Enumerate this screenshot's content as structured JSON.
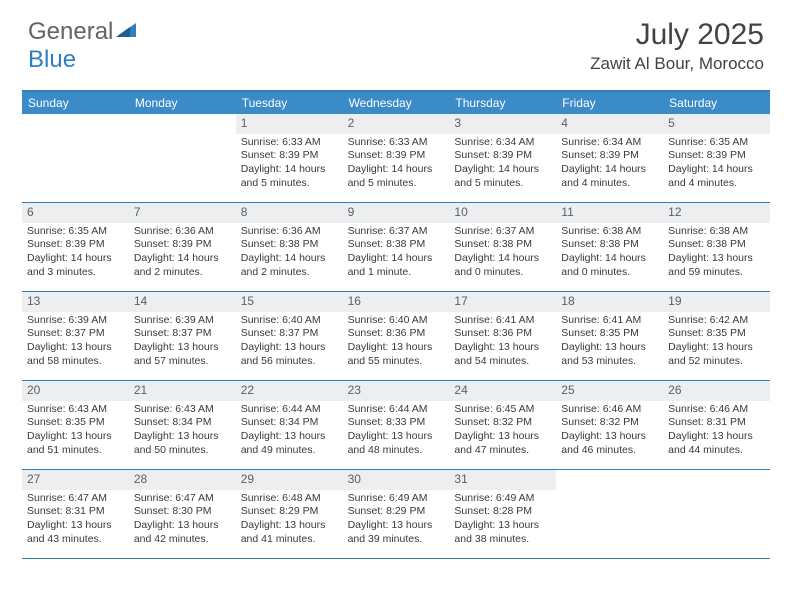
{
  "logo": {
    "text_left": "General",
    "text_right": "Blue"
  },
  "title": "July 2025",
  "location": "Zawit Al Bour, Morocco",
  "colors": {
    "header_bar": "#3b8bc8",
    "border": "#2f7fbf",
    "daynum_bg": "#eceeef",
    "text": "#3a3a3a",
    "title_text": "#404448"
  },
  "weekdays": [
    "Sunday",
    "Monday",
    "Tuesday",
    "Wednesday",
    "Thursday",
    "Friday",
    "Saturday"
  ],
  "weeks": [
    [
      {
        "day": "",
        "sunrise": "",
        "sunset": "",
        "daylight": ""
      },
      {
        "day": "",
        "sunrise": "",
        "sunset": "",
        "daylight": ""
      },
      {
        "day": "1",
        "sunrise": "Sunrise: 6:33 AM",
        "sunset": "Sunset: 8:39 PM",
        "daylight": "Daylight: 14 hours and 5 minutes."
      },
      {
        "day": "2",
        "sunrise": "Sunrise: 6:33 AM",
        "sunset": "Sunset: 8:39 PM",
        "daylight": "Daylight: 14 hours and 5 minutes."
      },
      {
        "day": "3",
        "sunrise": "Sunrise: 6:34 AM",
        "sunset": "Sunset: 8:39 PM",
        "daylight": "Daylight: 14 hours and 5 minutes."
      },
      {
        "day": "4",
        "sunrise": "Sunrise: 6:34 AM",
        "sunset": "Sunset: 8:39 PM",
        "daylight": "Daylight: 14 hours and 4 minutes."
      },
      {
        "day": "5",
        "sunrise": "Sunrise: 6:35 AM",
        "sunset": "Sunset: 8:39 PM",
        "daylight": "Daylight: 14 hours and 4 minutes."
      }
    ],
    [
      {
        "day": "6",
        "sunrise": "Sunrise: 6:35 AM",
        "sunset": "Sunset: 8:39 PM",
        "daylight": "Daylight: 14 hours and 3 minutes."
      },
      {
        "day": "7",
        "sunrise": "Sunrise: 6:36 AM",
        "sunset": "Sunset: 8:39 PM",
        "daylight": "Daylight: 14 hours and 2 minutes."
      },
      {
        "day": "8",
        "sunrise": "Sunrise: 6:36 AM",
        "sunset": "Sunset: 8:38 PM",
        "daylight": "Daylight: 14 hours and 2 minutes."
      },
      {
        "day": "9",
        "sunrise": "Sunrise: 6:37 AM",
        "sunset": "Sunset: 8:38 PM",
        "daylight": "Daylight: 14 hours and 1 minute."
      },
      {
        "day": "10",
        "sunrise": "Sunrise: 6:37 AM",
        "sunset": "Sunset: 8:38 PM",
        "daylight": "Daylight: 14 hours and 0 minutes."
      },
      {
        "day": "11",
        "sunrise": "Sunrise: 6:38 AM",
        "sunset": "Sunset: 8:38 PM",
        "daylight": "Daylight: 14 hours and 0 minutes."
      },
      {
        "day": "12",
        "sunrise": "Sunrise: 6:38 AM",
        "sunset": "Sunset: 8:38 PM",
        "daylight": "Daylight: 13 hours and 59 minutes."
      }
    ],
    [
      {
        "day": "13",
        "sunrise": "Sunrise: 6:39 AM",
        "sunset": "Sunset: 8:37 PM",
        "daylight": "Daylight: 13 hours and 58 minutes."
      },
      {
        "day": "14",
        "sunrise": "Sunrise: 6:39 AM",
        "sunset": "Sunset: 8:37 PM",
        "daylight": "Daylight: 13 hours and 57 minutes."
      },
      {
        "day": "15",
        "sunrise": "Sunrise: 6:40 AM",
        "sunset": "Sunset: 8:37 PM",
        "daylight": "Daylight: 13 hours and 56 minutes."
      },
      {
        "day": "16",
        "sunrise": "Sunrise: 6:40 AM",
        "sunset": "Sunset: 8:36 PM",
        "daylight": "Daylight: 13 hours and 55 minutes."
      },
      {
        "day": "17",
        "sunrise": "Sunrise: 6:41 AM",
        "sunset": "Sunset: 8:36 PM",
        "daylight": "Daylight: 13 hours and 54 minutes."
      },
      {
        "day": "18",
        "sunrise": "Sunrise: 6:41 AM",
        "sunset": "Sunset: 8:35 PM",
        "daylight": "Daylight: 13 hours and 53 minutes."
      },
      {
        "day": "19",
        "sunrise": "Sunrise: 6:42 AM",
        "sunset": "Sunset: 8:35 PM",
        "daylight": "Daylight: 13 hours and 52 minutes."
      }
    ],
    [
      {
        "day": "20",
        "sunrise": "Sunrise: 6:43 AM",
        "sunset": "Sunset: 8:35 PM",
        "daylight": "Daylight: 13 hours and 51 minutes."
      },
      {
        "day": "21",
        "sunrise": "Sunrise: 6:43 AM",
        "sunset": "Sunset: 8:34 PM",
        "daylight": "Daylight: 13 hours and 50 minutes."
      },
      {
        "day": "22",
        "sunrise": "Sunrise: 6:44 AM",
        "sunset": "Sunset: 8:34 PM",
        "daylight": "Daylight: 13 hours and 49 minutes."
      },
      {
        "day": "23",
        "sunrise": "Sunrise: 6:44 AM",
        "sunset": "Sunset: 8:33 PM",
        "daylight": "Daylight: 13 hours and 48 minutes."
      },
      {
        "day": "24",
        "sunrise": "Sunrise: 6:45 AM",
        "sunset": "Sunset: 8:32 PM",
        "daylight": "Daylight: 13 hours and 47 minutes."
      },
      {
        "day": "25",
        "sunrise": "Sunrise: 6:46 AM",
        "sunset": "Sunset: 8:32 PM",
        "daylight": "Daylight: 13 hours and 46 minutes."
      },
      {
        "day": "26",
        "sunrise": "Sunrise: 6:46 AM",
        "sunset": "Sunset: 8:31 PM",
        "daylight": "Daylight: 13 hours and 44 minutes."
      }
    ],
    [
      {
        "day": "27",
        "sunrise": "Sunrise: 6:47 AM",
        "sunset": "Sunset: 8:31 PM",
        "daylight": "Daylight: 13 hours and 43 minutes."
      },
      {
        "day": "28",
        "sunrise": "Sunrise: 6:47 AM",
        "sunset": "Sunset: 8:30 PM",
        "daylight": "Daylight: 13 hours and 42 minutes."
      },
      {
        "day": "29",
        "sunrise": "Sunrise: 6:48 AM",
        "sunset": "Sunset: 8:29 PM",
        "daylight": "Daylight: 13 hours and 41 minutes."
      },
      {
        "day": "30",
        "sunrise": "Sunrise: 6:49 AM",
        "sunset": "Sunset: 8:29 PM",
        "daylight": "Daylight: 13 hours and 39 minutes."
      },
      {
        "day": "31",
        "sunrise": "Sunrise: 6:49 AM",
        "sunset": "Sunset: 8:28 PM",
        "daylight": "Daylight: 13 hours and 38 minutes."
      },
      {
        "day": "",
        "sunrise": "",
        "sunset": "",
        "daylight": ""
      },
      {
        "day": "",
        "sunrise": "",
        "sunset": "",
        "daylight": ""
      }
    ]
  ]
}
